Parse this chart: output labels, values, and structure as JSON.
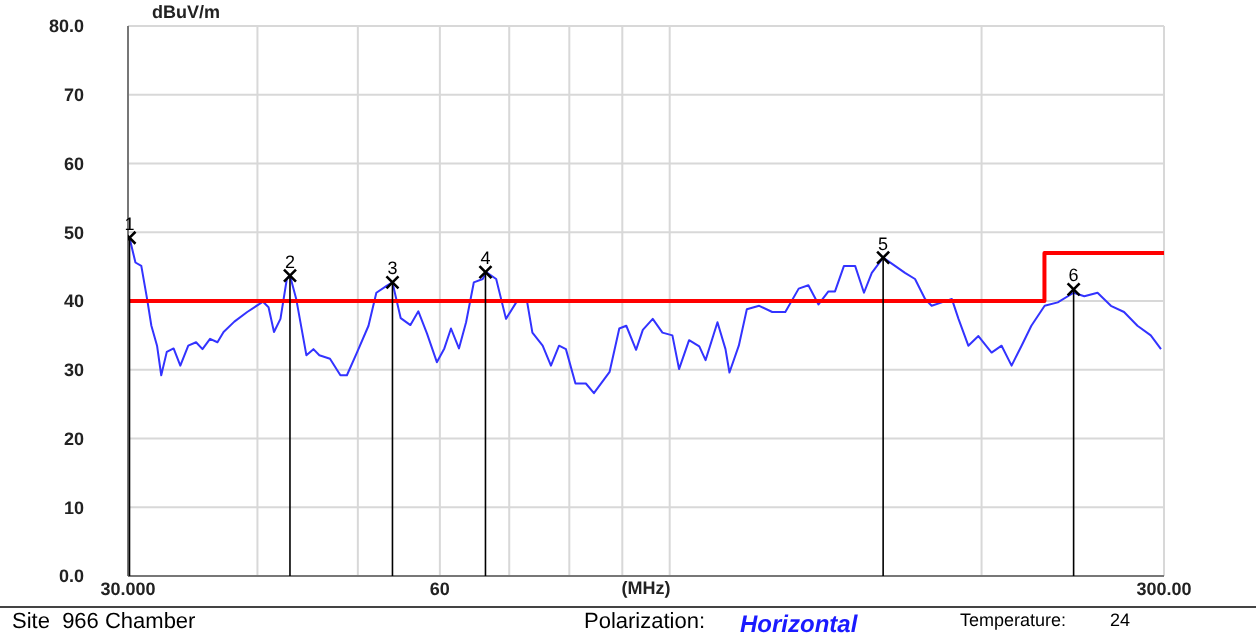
{
  "chart_data": {
    "type": "line",
    "ylabel": "dBuV/m",
    "xlabel": "(MHz)",
    "log": "x",
    "grid": true,
    "xlim": [
      30,
      300
    ],
    "xticks": [
      {
        "value": 30,
        "label": "30.000"
      },
      {
        "value": 40,
        "label": null
      },
      {
        "value": 50,
        "label": null
      },
      {
        "value": 60,
        "label": "60"
      },
      {
        "value": 70,
        "label": null
      },
      {
        "value": 80,
        "label": null
      },
      {
        "value": 90,
        "label": null
      },
      {
        "value": 100,
        "label": null
      },
      {
        "value": 200,
        "label": null
      },
      {
        "value": 300,
        "label": "300.00"
      }
    ],
    "ylim": [
      0,
      80
    ],
    "yticks": [
      {
        "value": 0,
        "label": "0.0"
      },
      10,
      20,
      30,
      40,
      50,
      60,
      70,
      {
        "value": 80,
        "label": "80.0"
      }
    ],
    "series": [
      {
        "color": "#3333ff",
        "x": [
          30.0,
          30.1,
          30.5,
          30.9,
          31.3,
          31.6,
          32.0,
          32.3,
          32.7,
          33.2,
          33.7,
          34.3,
          34.9,
          35.4,
          36.0,
          36.6,
          37.1,
          38.0,
          39.1,
          40.5,
          41.0,
          41.5,
          42.1,
          42.7,
          43.0,
          43.6,
          44.6,
          45.3,
          45.9,
          47.0,
          48.1,
          48.8,
          49.9,
          51.2,
          52.1,
          53.3,
          54.0,
          55.0,
          56.2,
          57.2,
          58.3,
          59.6,
          60.6,
          61.5,
          62.6,
          63.6,
          64.7,
          66.0,
          66.5,
          68.0,
          69.5,
          71.1,
          72.8,
          73.7,
          75.4,
          76.8,
          78.2,
          79.4,
          81.1,
          83.0,
          84.5,
          87.5,
          89.4,
          90.8,
          92.8,
          94.2,
          96.3,
          98.4,
          100.6,
          102.1,
          104.4,
          106.8,
          108.3,
          111.2,
          113.2,
          114.2,
          116.6,
          118.7,
          122.0,
          125.6,
          129.3,
          133.2,
          136.1,
          139.2,
          142.3,
          144.4,
          147.3,
          151.0,
          154.0,
          156.7,
          160.7,
          165.0,
          168.7,
          172.5,
          176.4,
          179.0,
          183.1,
          187.2,
          190.0,
          194.2,
          198.6,
          204.5,
          209.1,
          213.8,
          218.6,
          223.4,
          230.1,
          236.9,
          245.4,
          251.3,
          258.8,
          266.6,
          274.5,
          282.8,
          291.3,
          298.0
        ],
        "values": [
          48.0,
          49.2,
          45.6,
          45.1,
          40.3,
          36.4,
          33.5,
          29.2,
          32.6,
          33.1,
          30.6,
          33.5,
          34.0,
          33.0,
          34.5,
          34.0,
          35.5,
          37.0,
          38.4,
          39.9,
          39.1,
          35.5,
          37.4,
          43.2,
          43.7,
          40.3,
          32.1,
          33.0,
          32.1,
          31.6,
          29.2,
          29.2,
          32.5,
          36.4,
          41.2,
          42.2,
          42.7,
          37.5,
          36.5,
          38.5,
          35.3,
          31.1,
          33.1,
          36.0,
          33.1,
          36.9,
          42.7,
          43.2,
          44.2,
          43.2,
          37.4,
          39.8,
          40.1,
          35.4,
          33.5,
          30.6,
          33.5,
          33.0,
          28.0,
          28.0,
          26.6,
          29.7,
          36.0,
          36.4,
          32.9,
          35.8,
          37.4,
          35.4,
          35.0,
          30.1,
          34.3,
          33.4,
          31.4,
          36.9,
          33.0,
          29.6,
          33.5,
          38.8,
          39.3,
          38.4,
          38.4,
          41.8,
          42.3,
          39.5,
          41.4,
          41.4,
          45.1,
          45.1,
          41.2,
          44.1,
          46.3,
          45.1,
          44.1,
          43.2,
          40.3,
          39.3,
          39.8,
          40.3,
          37.4,
          33.5,
          34.9,
          32.5,
          33.5,
          30.6,
          33.5,
          36.4,
          39.3,
          39.8,
          41.2,
          40.7,
          41.2,
          39.3,
          38.4,
          36.4,
          35.0,
          33.0
        ]
      },
      {
        "color": "#ff0000",
        "x": [
          30,
          230,
          230,
          300
        ],
        "values": [
          40,
          40,
          47,
          47
        ]
      },
      {
        "type": "lollipop",
        "color": "#000000",
        "marker": "cross",
        "x": [
          30.1,
          43.0,
          54.0,
          66.4,
          160.7,
          245.4
        ],
        "values": [
          49.2,
          43.7,
          42.7,
          44.2,
          46.3,
          41.7
        ]
      }
    ],
    "annotations": [
      "Site  966 Chamber",
      "Polarization:",
      "Horizontal",
      "Temperature:",
      "24",
      {
        "text": "1",
        "x": 30.1,
        "y": 49.2
      },
      {
        "text": "2",
        "x": 43.0,
        "y": 43.7
      },
      {
        "text": "3",
        "x": 54.0,
        "y": 42.7
      },
      {
        "text": "4",
        "x": 66.4,
        "y": 44.2
      },
      {
        "text": "5",
        "x": 160.7,
        "y": 46.3
      },
      {
        "text": "6",
        "x": 245.4,
        "y": 41.7
      }
    ]
  }
}
